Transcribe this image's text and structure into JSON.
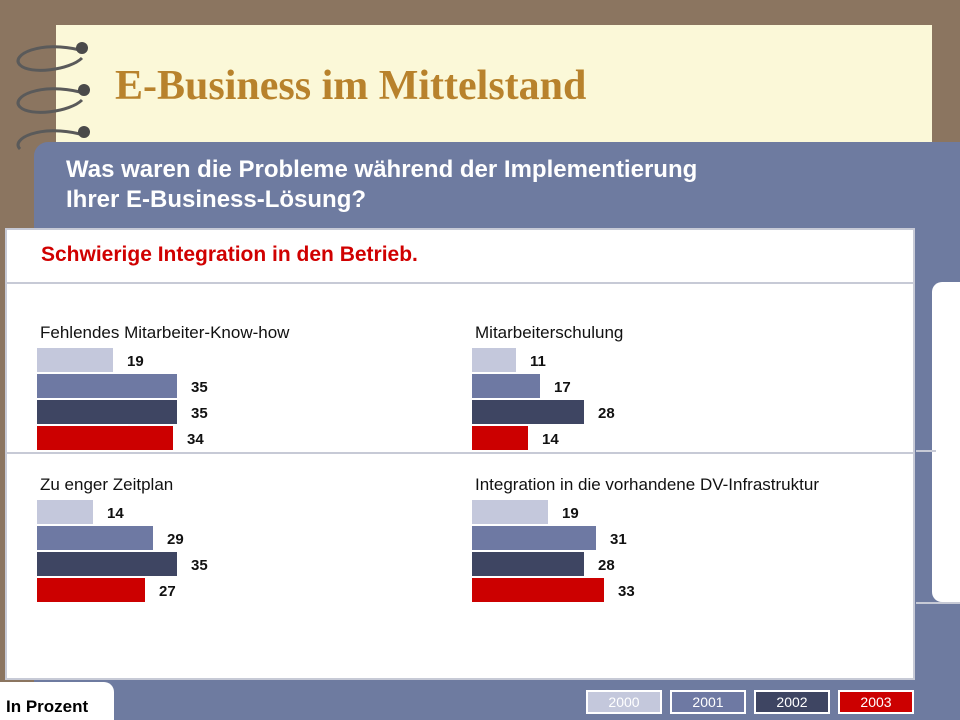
{
  "header": {
    "title": "E-Business im Mittelstand"
  },
  "question": {
    "line1": "Was waren die Probleme während der Implementierung",
    "line2": "Ihrer E-Business-Lösung?"
  },
  "subtitle": "Schwierige Integration in den Betrieb.",
  "unit_label": "In Prozent",
  "colors": {
    "2000": "#c4c8dc",
    "2001": "#6e79a3",
    "2002": "#3e4562",
    "2003": "#cc0000"
  },
  "legend": [
    "2000",
    "2001",
    "2002",
    "2003"
  ],
  "chart_data": [
    {
      "type": "bar",
      "title": "Fehlendes Mitarbeiter-Know-how",
      "series": [
        {
          "name": "2000",
          "values": [
            19
          ]
        },
        {
          "name": "2001",
          "values": [
            35
          ]
        },
        {
          "name": "2002",
          "values": [
            35
          ]
        },
        {
          "name": "2003",
          "values": [
            34
          ]
        }
      ]
    },
    {
      "type": "bar",
      "title": "Mitarbeiterschulung",
      "series": [
        {
          "name": "2000",
          "values": [
            11
          ]
        },
        {
          "name": "2001",
          "values": [
            17
          ]
        },
        {
          "name": "2002",
          "values": [
            28
          ]
        },
        {
          "name": "2003",
          "values": [
            14
          ]
        }
      ]
    },
    {
      "type": "bar",
      "title": "Zu enger Zeitplan",
      "series": [
        {
          "name": "2000",
          "values": [
            14
          ]
        },
        {
          "name": "2001",
          "values": [
            29
          ]
        },
        {
          "name": "2002",
          "values": [
            35
          ]
        },
        {
          "name": "2003",
          "values": [
            27
          ]
        }
      ]
    },
    {
      "type": "bar",
      "title": "Integration in die vorhandene DV-Infrastruktur",
      "series": [
        {
          "name": "2000",
          "values": [
            19
          ]
        },
        {
          "name": "2001",
          "values": [
            31
          ]
        },
        {
          "name": "2002",
          "values": [
            28
          ]
        },
        {
          "name": "2003",
          "values": [
            33
          ]
        }
      ]
    }
  ]
}
